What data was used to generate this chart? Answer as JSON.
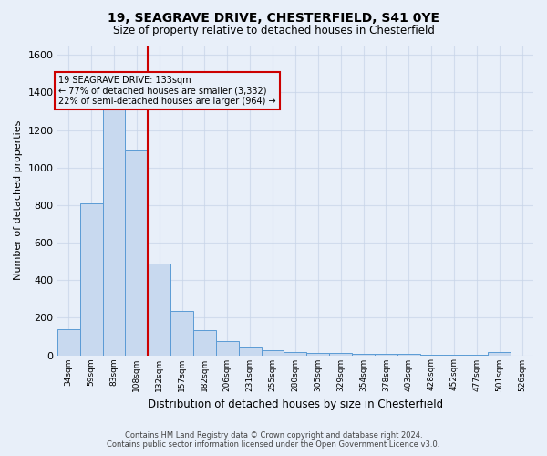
{
  "title1": "19, SEAGRAVE DRIVE, CHESTERFIELD, S41 0YE",
  "title2": "Size of property relative to detached houses in Chesterfield",
  "xlabel": "Distribution of detached houses by size in Chesterfield",
  "ylabel": "Number of detached properties",
  "footer1": "Contains HM Land Registry data © Crown copyright and database right 2024.",
  "footer2": "Contains public sector information licensed under the Open Government Licence v3.0.",
  "bar_labels": [
    "34sqm",
    "59sqm",
    "83sqm",
    "108sqm",
    "132sqm",
    "157sqm",
    "182sqm",
    "206sqm",
    "231sqm",
    "255sqm",
    "280sqm",
    "305sqm",
    "329sqm",
    "354sqm",
    "378sqm",
    "403sqm",
    "428sqm",
    "452sqm",
    "477sqm",
    "501sqm",
    "526sqm"
  ],
  "bar_values": [
    140,
    810,
    1310,
    1090,
    490,
    235,
    135,
    75,
    40,
    25,
    15,
    10,
    10,
    8,
    5,
    5,
    3,
    3,
    2,
    15,
    0
  ],
  "bar_color": "#c8d9ef",
  "bar_edge_color": "#5b9bd5",
  "vline_color": "#cc0000",
  "vline_x_index": 3.5,
  "ylim": [
    0,
    1650
  ],
  "yticks": [
    0,
    200,
    400,
    600,
    800,
    1000,
    1200,
    1400,
    1600
  ],
  "annotation_text": "19 SEAGRAVE DRIVE: 133sqm\n← 77% of detached houses are smaller (3,332)\n22% of semi-detached houses are larger (964) →",
  "bg_color": "#e8eff9",
  "grid_color": "#c8d4e8",
  "grid_alpha": 0.7
}
